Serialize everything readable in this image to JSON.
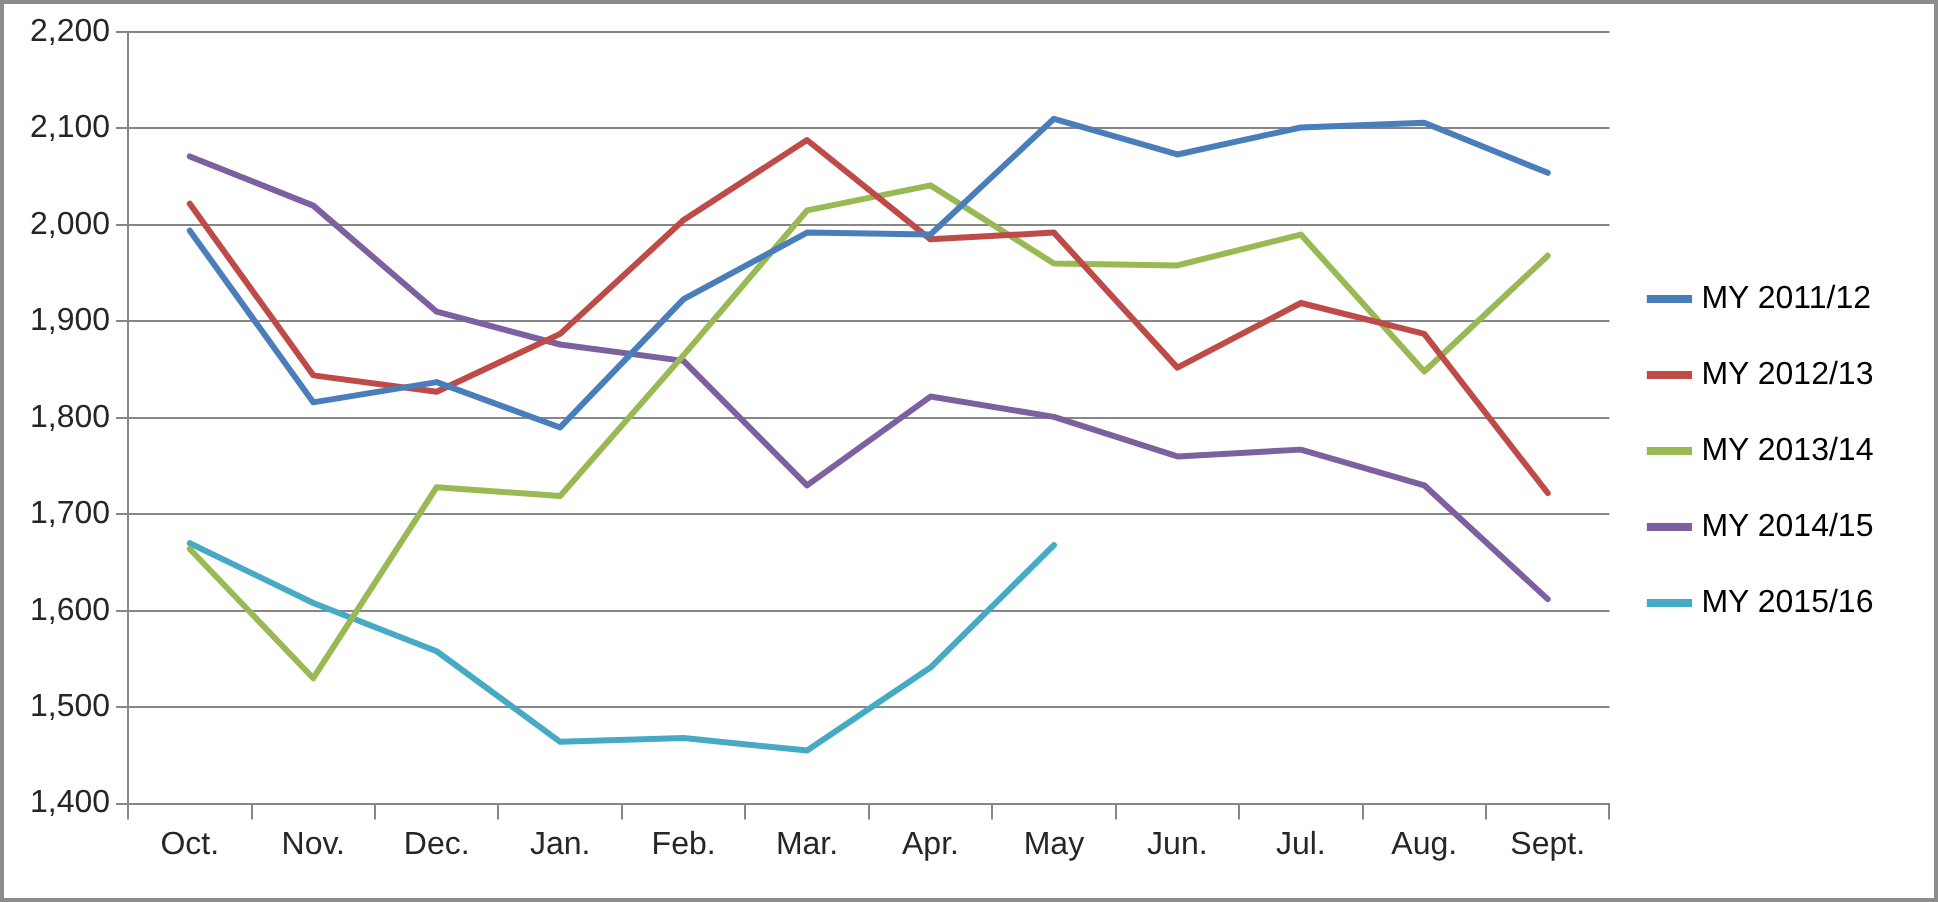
{
  "chart_data": {
    "type": "line",
    "categories": [
      "Oct.",
      "Nov.",
      "Dec.",
      "Jan.",
      "Feb.",
      "Mar.",
      "Apr.",
      "May",
      "Jun.",
      "Jul.",
      "Aug.",
      "Sept."
    ],
    "series": [
      {
        "name": "MY 2011/12",
        "color": "#4a7ebb",
        "values": [
          1994,
          1816,
          1837,
          1790,
          1923,
          1992,
          1990,
          2110,
          2073,
          2101,
          2106,
          2054
        ]
      },
      {
        "name": "MY 2012/13",
        "color": "#be4b48",
        "values": [
          2022,
          1844,
          1827,
          1887,
          2005,
          2088,
          1985,
          1992,
          1852,
          1919,
          1887,
          1722
        ]
      },
      {
        "name": "MY 2013/14",
        "color": "#98b954",
        "values": [
          1664,
          1530,
          1728,
          1719,
          1865,
          2015,
          2041,
          1960,
          1958,
          1990,
          1848,
          1968
        ]
      },
      {
        "name": "MY 2014/15",
        "color": "#7d60a0",
        "values": [
          2071,
          2020,
          1910,
          1876,
          1859,
          1730,
          1822,
          1801,
          1760,
          1767,
          1730,
          1612
        ]
      },
      {
        "name": "MY 2015/16",
        "color": "#46aac5",
        "values": [
          1670,
          1608,
          1558,
          1464,
          1468,
          1455,
          1541,
          1668,
          null,
          null,
          null,
          null
        ]
      }
    ],
    "ylim": [
      1400,
      2200
    ],
    "yticks": [
      {
        "value": 1400,
        "label": "1,400"
      },
      {
        "value": 1500,
        "label": "1,500"
      },
      {
        "value": 1600,
        "label": "1,600"
      },
      {
        "value": 1700,
        "label": "1,700"
      },
      {
        "value": 1800,
        "label": "1,800"
      },
      {
        "value": 1900,
        "label": "1,900"
      },
      {
        "value": 2000,
        "label": "2,000"
      },
      {
        "value": 2100,
        "label": "2,100"
      },
      {
        "value": 2200,
        "label": "2,200"
      }
    ],
    "grid": "y",
    "legend": "right",
    "marker": "none",
    "line_style": "solid"
  }
}
